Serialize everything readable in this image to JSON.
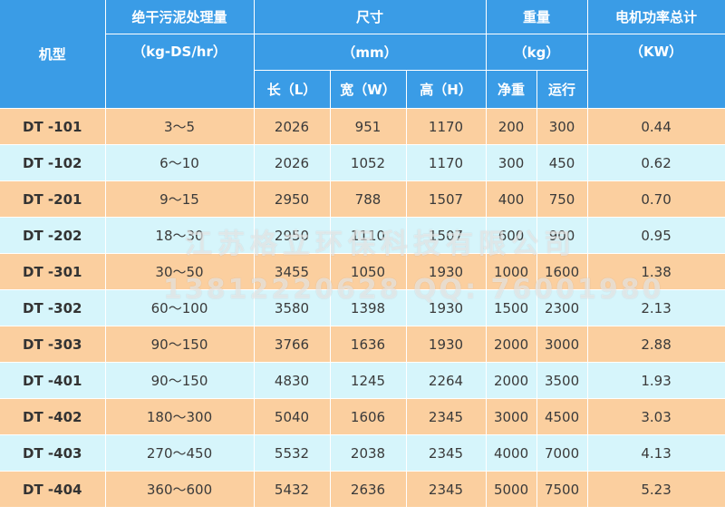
{
  "header": {
    "model": "机型",
    "capacity": "绝干污泥处理量",
    "capacity_unit": "（kg-DS/hr）",
    "size": "尺寸",
    "size_unit": "（mm）",
    "length": "长（L）",
    "width": "宽（W）",
    "height": "高（H）",
    "weight": "重量",
    "weight_unit": "（kg）",
    "net": "净重",
    "run": "运行",
    "power": "电机功率总计",
    "power_unit": "（KW）"
  },
  "rows": [
    {
      "model": "DT -101",
      "capacity": "3～5",
      "length": "2026",
      "width": "951",
      "height": "1170",
      "net": "200",
      "run": "300",
      "power": "0.44"
    },
    {
      "model": "DT -102",
      "capacity": "6～10",
      "length": "2026",
      "width": "1052",
      "height": "1170",
      "net": "300",
      "run": "450",
      "power": "0.62"
    },
    {
      "model": "DT -201",
      "capacity": "9～15",
      "length": "2950",
      "width": "788",
      "height": "1507",
      "net": "400",
      "run": "750",
      "power": "0.70"
    },
    {
      "model": "DT -202",
      "capacity": "18～30",
      "length": "2950",
      "width": "1110",
      "height": "1507",
      "net": "600",
      "run": "900",
      "power": "0.95"
    },
    {
      "model": "DT -301",
      "capacity": "30～50",
      "length": "3455",
      "width": "1050",
      "height": "1930",
      "net": "1000",
      "run": "1600",
      "power": "1.38"
    },
    {
      "model": "DT -302",
      "capacity": "60～100",
      "length": "3580",
      "width": "1398",
      "height": "1930",
      "net": "1500",
      "run": "2300",
      "power": "2.13"
    },
    {
      "model": "DT -303",
      "capacity": "90～150",
      "length": "3766",
      "width": "1636",
      "height": "1930",
      "net": "2000",
      "run": "3000",
      "power": "2.88"
    },
    {
      "model": "DT -401",
      "capacity": "90～150",
      "length": "4830",
      "width": "1245",
      "height": "2264",
      "net": "2000",
      "run": "3500",
      "power": "1.93"
    },
    {
      "model": "DT -402",
      "capacity": "180～300",
      "length": "5040",
      "width": "1606",
      "height": "2345",
      "net": "3000",
      "run": "4500",
      "power": "3.03"
    },
    {
      "model": "DT -403",
      "capacity": "270～450",
      "length": "5532",
      "width": "2038",
      "height": "2345",
      "net": "4000",
      "run": "7000",
      "power": "4.13"
    },
    {
      "model": "DT -404",
      "capacity": "360～600",
      "length": "5432",
      "width": "2636",
      "height": "2345",
      "net": "5000",
      "run": "7500",
      "power": "5.23"
    }
  ],
  "watermark": {
    "company": "江苏格立环保科技有限公司",
    "contact": "13812220628  QQ: 76001980"
  }
}
